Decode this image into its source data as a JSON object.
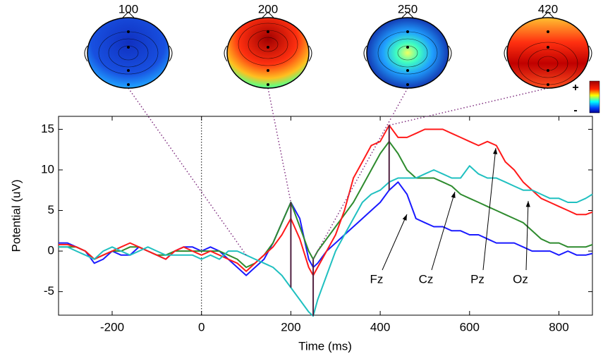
{
  "chart_data": {
    "type": "line",
    "xlabel": "Time (ms)",
    "ylabel": "Potential (uV)",
    "x": [
      -320,
      -300,
      -280,
      -260,
      -240,
      -220,
      -200,
      -180,
      -160,
      -140,
      -120,
      -100,
      -80,
      -60,
      -40,
      -20,
      0,
      20,
      40,
      60,
      80,
      100,
      120,
      140,
      160,
      180,
      200,
      220,
      240,
      250,
      260,
      280,
      300,
      320,
      340,
      360,
      380,
      400,
      420,
      440,
      460,
      480,
      500,
      520,
      540,
      560,
      580,
      600,
      620,
      640,
      660,
      680,
      700,
      720,
      740,
      760,
      780,
      800,
      820,
      840,
      860,
      875
    ],
    "series": [
      {
        "name": "Fz",
        "color": "#1a1aff",
        "values": [
          1,
          1,
          0.5,
          0,
          -1.5,
          -1,
          0,
          -0.5,
          -0.5,
          0.5,
          0,
          -0.5,
          -1,
          0,
          0.5,
          0.5,
          0,
          0.5,
          0,
          -1,
          -2,
          -3,
          -2,
          -1,
          1,
          3.5,
          6,
          4,
          -1,
          -2,
          -1.5,
          0,
          1,
          2,
          3,
          4,
          5,
          6,
          7.5,
          8.5,
          7,
          4,
          3.5,
          3,
          3,
          2.5,
          2.5,
          2,
          2,
          1.5,
          1,
          1,
          1,
          0.5,
          0,
          0,
          0,
          -0.5,
          0,
          -0.5,
          -0.5,
          -0.3
        ]
      },
      {
        "name": "Cz",
        "color": "#2e8b2e",
        "values": [
          0.5,
          0.5,
          0.5,
          0,
          -1,
          -0.5,
          0,
          0,
          0.5,
          0.5,
          0,
          -0.5,
          -0.5,
          0,
          0,
          0,
          0,
          0,
          0,
          -0.5,
          -1,
          -2,
          -1.5,
          -0.5,
          1,
          3.5,
          6,
          3,
          0,
          -1,
          0,
          1.5,
          3,
          4.5,
          6,
          8,
          10,
          12,
          13.5,
          12,
          10,
          9,
          9,
          9,
          8.5,
          8,
          7,
          6.5,
          6,
          5.5,
          5,
          4.5,
          4,
          3.5,
          2.5,
          1.5,
          1,
          1,
          0.5,
          0.5,
          0.5,
          0.8
        ]
      },
      {
        "name": "Pz",
        "color": "#ff1a1a",
        "values": [
          0.8,
          0.8,
          0.5,
          0,
          -1,
          -0.5,
          0,
          0.5,
          1,
          0.5,
          0,
          -0.5,
          -1,
          0,
          0.5,
          0,
          -0.5,
          0,
          -0.5,
          -1,
          -1.5,
          -2.5,
          -1.5,
          -0.5,
          0.5,
          2,
          4,
          1.5,
          -2,
          -3,
          -2,
          0,
          2,
          5,
          9,
          11,
          13,
          13.5,
          15.5,
          14,
          14,
          14.5,
          15,
          15,
          15,
          14.5,
          14,
          13.5,
          13,
          13.5,
          13,
          11,
          10,
          8.5,
          7.5,
          6.5,
          6,
          5.5,
          5,
          4.5,
          4.5,
          4.8
        ]
      },
      {
        "name": "Oz",
        "color": "#20c0c0",
        "values": [
          0.5,
          0.5,
          0,
          -0.5,
          -1,
          0,
          0.5,
          0,
          -0.5,
          0,
          0.5,
          0,
          -0.5,
          -0.5,
          -0.5,
          -0.5,
          -1,
          -0.5,
          -1,
          0,
          0,
          -0.5,
          -1,
          -1.5,
          -2,
          -3,
          -4.5,
          -6,
          -7.5,
          -8,
          -6,
          -3,
          0,
          2,
          4,
          6,
          7,
          7.5,
          8.5,
          9,
          9,
          9,
          9.5,
          10,
          9.5,
          9,
          9,
          10.5,
          9.5,
          9,
          9,
          8.5,
          8,
          7.5,
          7.5,
          7,
          6.5,
          6.5,
          6,
          6,
          6.5,
          7
        ]
      }
    ],
    "xlim": [
      -320,
      875
    ],
    "ylim": [
      -7.9,
      16.6
    ],
    "xticks": [
      -200,
      0,
      200,
      400,
      600,
      800
    ],
    "yticks": [
      -5,
      0,
      5,
      10,
      15
    ],
    "topomap_times": [
      100,
      200,
      250,
      420
    ],
    "colorbar_labels": [
      "+",
      "-"
    ]
  }
}
